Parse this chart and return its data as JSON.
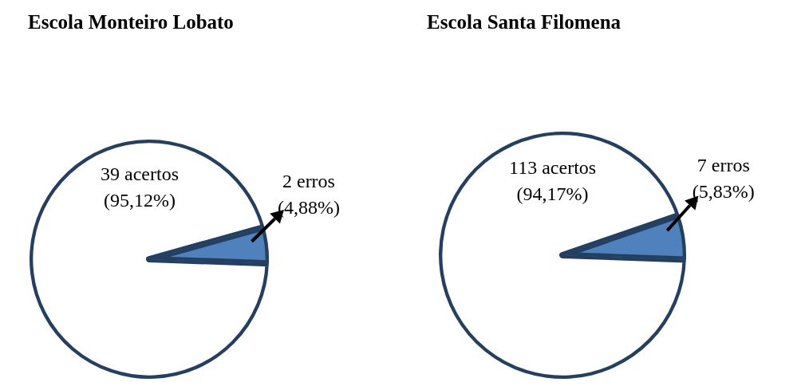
{
  "chart_data": [
    {
      "type": "pie",
      "title": "Escola Monteiro Lobato",
      "categories": [
        "39 acertos",
        "2 erros"
      ],
      "values": [
        95.12,
        4.88
      ],
      "colors": [
        "#ffffff",
        "#4f81bd"
      ],
      "value_labels": [
        "(95,12%)",
        "(4,88%)"
      ]
    },
    {
      "type": "pie",
      "title": "Escola Santa Filomena",
      "categories": [
        "113 acertos",
        "7 erros"
      ],
      "values": [
        94.17,
        5.83
      ],
      "colors": [
        "#ffffff",
        "#4f81bd"
      ],
      "value_labels": [
        "(94,17%)",
        "(5,83%)"
      ]
    }
  ]
}
